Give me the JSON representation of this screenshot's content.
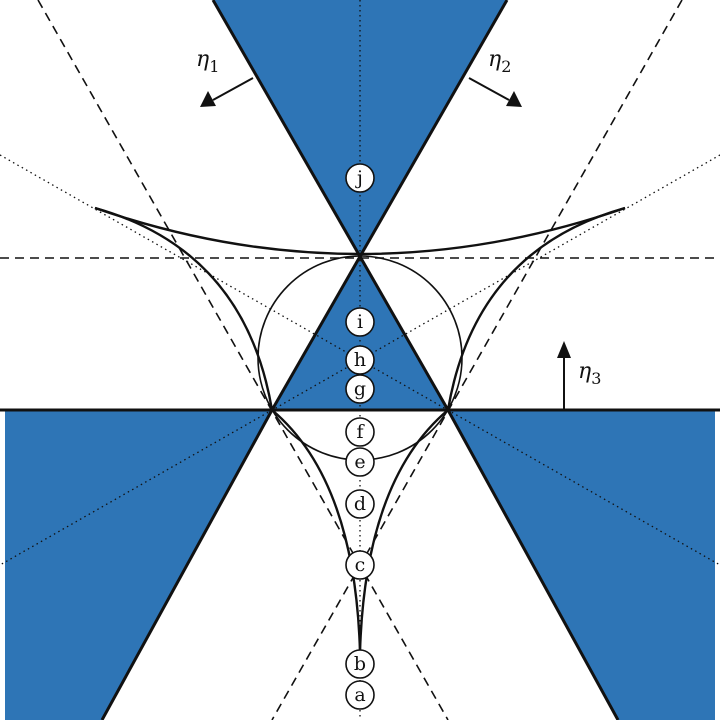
{
  "colors": {
    "region_fill": "#2e75b6",
    "line": "#111111",
    "marker_fill": "#ffffff"
  },
  "points": [
    "a",
    "b",
    "c",
    "d",
    "e",
    "f",
    "g",
    "h",
    "i",
    "j"
  ],
  "directions": [
    {
      "symbol": "η",
      "subscript": "1"
    },
    {
      "symbol": "η",
      "subscript": "2"
    },
    {
      "symbol": "η",
      "subscript": "3"
    }
  ]
}
